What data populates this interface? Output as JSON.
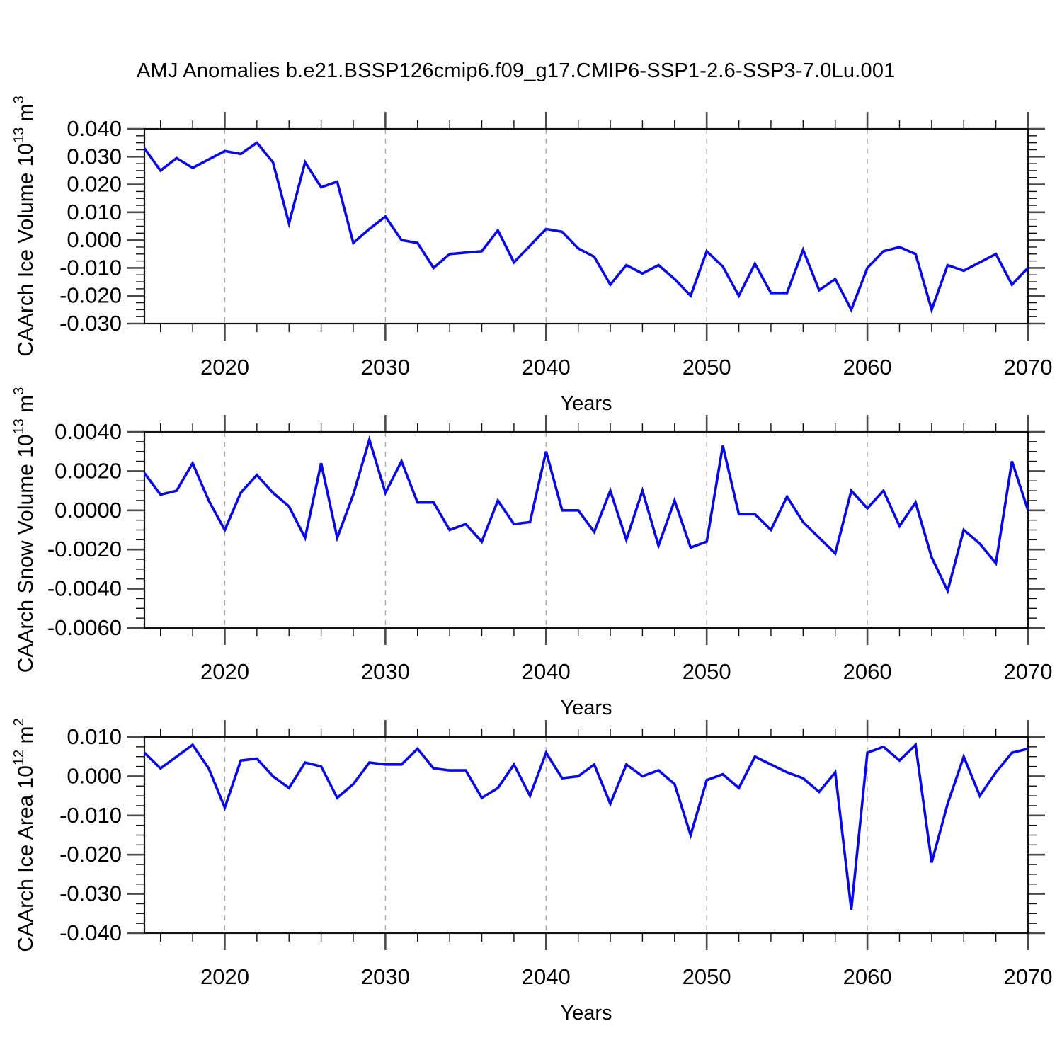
{
  "title": "AMJ Anomalies b.e21.BSSP126cmip6.f09_g17.CMIP6-SSP1-2.6-SSP3-7.0Lu.001",
  "colors": {
    "line": "#0808e8",
    "grid": "#a9a9a9",
    "frame": "#111111",
    "major_tick": "#4a4a4a",
    "minor_tick": "#111111",
    "text": "#000000",
    "background": "#ffffff"
  },
  "years": [
    2015,
    2016,
    2017,
    2018,
    2019,
    2020,
    2021,
    2022,
    2023,
    2024,
    2025,
    2026,
    2027,
    2028,
    2029,
    2030,
    2031,
    2032,
    2033,
    2034,
    2035,
    2036,
    2037,
    2038,
    2039,
    2040,
    2041,
    2042,
    2043,
    2044,
    2045,
    2046,
    2047,
    2048,
    2049,
    2050,
    2051,
    2052,
    2053,
    2054,
    2055,
    2056,
    2057,
    2058,
    2059,
    2060,
    2061,
    2062,
    2063,
    2064,
    2065,
    2066,
    2067,
    2068,
    2069,
    2070
  ],
  "chart_data": [
    {
      "type": "line",
      "title": "",
      "xlabel": "Years",
      "ylabel": "CAArch Ice Volume 10^13 m^3",
      "ylabel_parts": [
        {
          "t": "CAArch Ice Volume 10",
          "sup": false
        },
        {
          "t": "13",
          "sup": true
        },
        {
          "t": " m",
          "sup": false
        },
        {
          "t": "3",
          "sup": true
        }
      ],
      "xlim": [
        2015,
        2070
      ],
      "ylim": [
        -0.03,
        0.04
      ],
      "ytick_step": 0.01,
      "yminor_divisions": 4,
      "ytick_labels": [
        "0.040",
        "0.030",
        "0.020",
        "0.010",
        "0.000",
        "-0.010",
        "-0.020",
        "-0.030"
      ],
      "xtick_labels": [
        "2020",
        "2030",
        "2040",
        "2050",
        "2060",
        "2070"
      ],
      "xminor_step": 2,
      "grid_x": [
        2020,
        2030,
        2040,
        2050,
        2060
      ],
      "grid_style": "dashed",
      "legend": "none",
      "values": [
        0.033,
        0.025,
        0.0295,
        0.026,
        0.029,
        0.032,
        0.031,
        0.035,
        0.028,
        0.006,
        0.028,
        0.019,
        0.021,
        -0.001,
        0.004,
        0.0085,
        0.0,
        -0.001,
        -0.01,
        -0.005,
        -0.0045,
        -0.004,
        0.0035,
        -0.008,
        -0.002,
        0.004,
        0.003,
        -0.003,
        -0.006,
        -0.016,
        -0.009,
        -0.012,
        -0.009,
        -0.014,
        -0.02,
        -0.004,
        -0.0095,
        -0.02,
        -0.0085,
        -0.019,
        -0.019,
        -0.0035,
        -0.018,
        -0.014,
        -0.025,
        -0.01,
        -0.004,
        -0.0025,
        -0.005,
        -0.025,
        -0.009,
        -0.011,
        -0.008,
        -0.005,
        -0.016,
        -0.01
      ]
    },
    {
      "type": "line",
      "title": "",
      "xlabel": "Years",
      "ylabel": "CAArch Snow Volume 10^13 m^3",
      "ylabel_parts": [
        {
          "t": "CAArch Snow Volume 10",
          "sup": false
        },
        {
          "t": "13",
          "sup": true
        },
        {
          "t": " m",
          "sup": false
        },
        {
          "t": "3",
          "sup": true
        }
      ],
      "xlim": [
        2015,
        2070
      ],
      "ylim": [
        -0.006,
        0.004
      ],
      "ytick_step": 0.002,
      "yminor_divisions": 4,
      "ytick_labels": [
        "0.0040",
        "0.0020",
        "0.0000",
        "-0.0020",
        "-0.0040",
        "-0.0060"
      ],
      "xtick_labels": [
        "2020",
        "2030",
        "2040",
        "2050",
        "2060",
        "2070"
      ],
      "xminor_step": 2,
      "grid_x": [
        2020,
        2030,
        2040,
        2050,
        2060
      ],
      "grid_style": "dashed",
      "legend": "none",
      "values": [
        0.0019,
        0.0008,
        0.001,
        0.0024,
        0.0005,
        -0.001,
        0.0009,
        0.0018,
        0.0009,
        0.0002,
        -0.0014,
        0.0024,
        -0.0014,
        0.0008,
        0.0036,
        0.0009,
        0.0025,
        0.0004,
        0.0004,
        -0.001,
        -0.0007,
        -0.0016,
        0.0005,
        -0.0007,
        -0.0006,
        0.003,
        0.0,
        0.0,
        -0.0011,
        0.001,
        -0.0015,
        0.001,
        -0.0018,
        0.0005,
        -0.0019,
        -0.0016,
        0.0033,
        -0.0002,
        -0.0002,
        -0.001,
        0.0007,
        -0.0006,
        -0.0014,
        -0.0022,
        0.001,
        0.0001,
        0.001,
        -0.0008,
        0.0004,
        -0.0024,
        -0.0041,
        -0.001,
        -0.0017,
        -0.0027,
        0.0025,
        0.0
      ]
    },
    {
      "type": "line",
      "title": "",
      "xlabel": "Years",
      "ylabel": "CAArch Ice Area 10^12 m^2",
      "ylabel_parts": [
        {
          "t": "CAArch Ice Area 10",
          "sup": false
        },
        {
          "t": "12",
          "sup": true
        },
        {
          "t": " m",
          "sup": false
        },
        {
          "t": "2",
          "sup": true
        }
      ],
      "xlim": [
        2015,
        2070
      ],
      "ylim": [
        -0.04,
        0.01
      ],
      "ytick_step": 0.01,
      "yminor_divisions": 4,
      "ytick_labels": [
        "0.010",
        "0.000",
        "-0.010",
        "-0.020",
        "-0.030",
        "-0.040"
      ],
      "xtick_labels": [
        "2020",
        "2030",
        "2040",
        "2050",
        "2060",
        "2070"
      ],
      "xminor_step": 2,
      "grid_x": [
        2020,
        2030,
        2040,
        2050,
        2060
      ],
      "grid_style": "dashed",
      "legend": "none",
      "values": [
        0.006,
        0.002,
        0.005,
        0.008,
        0.002,
        -0.008,
        0.004,
        0.0045,
        0.0,
        -0.003,
        0.0035,
        0.0025,
        -0.0055,
        -0.002,
        0.0035,
        0.003,
        0.003,
        0.007,
        0.002,
        0.0015,
        0.0015,
        -0.0055,
        -0.003,
        0.003,
        -0.005,
        0.006,
        -0.0005,
        0.0,
        0.003,
        -0.007,
        0.003,
        0.0,
        0.0015,
        -0.002,
        -0.015,
        -0.001,
        0.0005,
        -0.003,
        0.005,
        0.003,
        0.001,
        -0.0005,
        -0.004,
        0.001,
        -0.034,
        0.006,
        0.0075,
        0.004,
        0.008,
        -0.022,
        -0.007,
        0.005,
        -0.005,
        0.001,
        0.006,
        0.007
      ]
    }
  ]
}
